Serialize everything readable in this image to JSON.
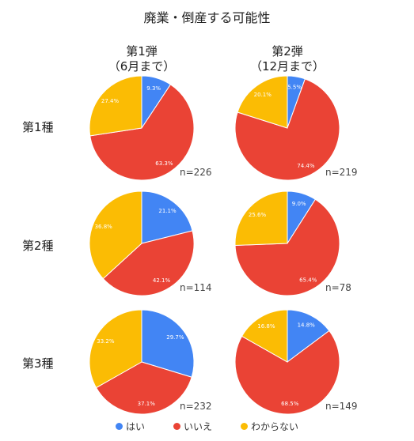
{
  "title": "廃業・倒産する可能性",
  "columns": [
    {
      "line1": "第1弾",
      "line2": "（6月まで）"
    },
    {
      "line1": "第2弾",
      "line2": "（12月まで）"
    }
  ],
  "rows": [
    "第1種",
    "第2種",
    "第3種"
  ],
  "legend": [
    {
      "label": "はい",
      "color": "#4285f4"
    },
    {
      "label": "いいえ",
      "color": "#ea4335"
    },
    {
      "label": "わからない",
      "color": "#fbbc04"
    }
  ],
  "chart_data": {
    "type": "pie",
    "categories": [
      "はい",
      "いいえ",
      "わからない"
    ],
    "colors": [
      "#4285f4",
      "#ea4335",
      "#fbbc04"
    ],
    "charts": [
      {
        "row": "第1種",
        "column": "第1弾",
        "n_label": "n=226",
        "values": [
          9.3,
          63.3,
          27.4
        ],
        "labels": [
          "9.3%",
          "63.3%",
          "27.4%"
        ]
      },
      {
        "row": "第1種",
        "column": "第2弾",
        "n_label": "n=219",
        "values": [
          5.5,
          74.4,
          20.1
        ],
        "labels": [
          "5.5%",
          "74.4%",
          "20.1%"
        ]
      },
      {
        "row": "第2種",
        "column": "第1弾",
        "n_label": "n=114",
        "values": [
          21.1,
          42.1,
          36.8
        ],
        "labels": [
          "21.1%",
          "42.1%",
          "36.8%"
        ]
      },
      {
        "row": "第2種",
        "column": "第2弾",
        "n_label": "n=78",
        "values": [
          9.0,
          65.4,
          25.6
        ],
        "labels": [
          "9.0%",
          "65.4%",
          "25.6%"
        ]
      },
      {
        "row": "第3種",
        "column": "第1弾",
        "n_label": "n=232",
        "values": [
          29.7,
          37.1,
          33.2
        ],
        "labels": [
          "29.7%",
          "37.1%",
          "33.2%"
        ]
      },
      {
        "row": "第3種",
        "column": "第2弾",
        "n_label": "n=149",
        "values": [
          14.8,
          68.5,
          16.8
        ],
        "labels": [
          "14.8%",
          "68.5%",
          "16.8%"
        ]
      }
    ]
  }
}
